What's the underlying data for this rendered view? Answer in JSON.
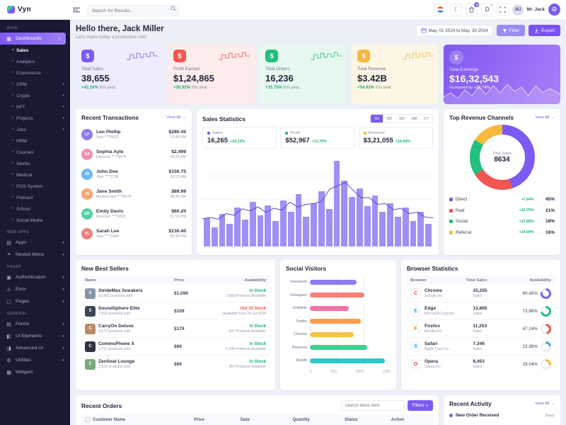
{
  "brand": {
    "name": "Vyn"
  },
  "header": {
    "search_placeholder": "Search for Results...",
    "cart_badge": "5",
    "user_name": "Mr. Jack",
    "user_initials": "MJ"
  },
  "icons": {
    "chevron_down": "▾",
    "bullet": "•",
    "caret_down": "▾",
    "arrow_right": "→",
    "moon": "☾",
    "theme": "◐",
    "gear": "⚙",
    "dollar": "$"
  },
  "sidebar": {
    "sections": [
      {
        "label": "MAIN",
        "items": [
          {
            "label": "Dashboards",
            "icon": "▦",
            "active": true,
            "children": [
              {
                "label": "Sales",
                "active": true
              },
              {
                "label": "Analytics"
              },
              {
                "label": "Ecommerce"
              },
              {
                "label": "CRM",
                "arrow": true
              },
              {
                "label": "Crypto",
                "arrow": true
              },
              {
                "label": "NFT",
                "arrow": true
              },
              {
                "label": "Projects",
                "arrow": true
              },
              {
                "label": "Jobs",
                "arrow": true
              },
              {
                "label": "HRM"
              },
              {
                "label": "Courses"
              },
              {
                "label": "Stocks"
              },
              {
                "label": "Medical"
              },
              {
                "label": "POS System"
              },
              {
                "label": "Podcast"
              },
              {
                "label": "School"
              },
              {
                "label": "Social Media"
              }
            ]
          }
        ]
      },
      {
        "label": "WEB APPS",
        "items": [
          {
            "label": "Apps",
            "icon": "▤",
            "arrow": true
          },
          {
            "label": "Nested Menu",
            "icon": "≡",
            "arrow": true
          }
        ]
      },
      {
        "label": "PAGES",
        "items": [
          {
            "label": "Authentication",
            "icon": "▣",
            "arrow": true
          },
          {
            "label": "Error",
            "icon": "⚠",
            "arrow": true
          },
          {
            "label": "Pages",
            "icon": "▢",
            "arrow": true
          }
        ]
      },
      {
        "label": "GENERAL",
        "items": [
          {
            "label": "Forms",
            "icon": "▤",
            "arrow": true
          },
          {
            "label": "UI Elements",
            "icon": "◧",
            "arrow": true
          },
          {
            "label": "Advanced UI",
            "icon": "◨",
            "arrow": true
          },
          {
            "label": "Utilities",
            "icon": "⚙",
            "arrow": true
          },
          {
            "label": "Widgets",
            "icon": "▦"
          }
        ]
      }
    ]
  },
  "welcome": {
    "title": "Hello there, Jack Miller",
    "subtitle": "Let's make today a productive one!"
  },
  "toolbar": {
    "date_range": "May, 01 2024 to May, 30 2024",
    "filter_label": "Filter",
    "export_label": "Export"
  },
  "stat_cards": [
    {
      "label": "Total Sales",
      "value": "38,655",
      "change": "+42.16%",
      "suffix": "this year",
      "accent": "#7c5bf2",
      "bg": "#efecfd"
    },
    {
      "label": "Profit Earned",
      "value": "$1,24,865",
      "change": "+26.92%",
      "suffix": "this year",
      "accent": "#f0564f",
      "bg": "#fdecec"
    },
    {
      "label": "Total Orders",
      "value": "16,236",
      "change": "+15.75%",
      "suffix": "this year",
      "accent": "#21c07e",
      "bg": "#e7f8f1"
    },
    {
      "label": "Total Revenue",
      "value": "$3.42B",
      "change": "+54.43%",
      "suffix": "this year",
      "accent": "#f6b83e",
      "bg": "#fdf6e4"
    }
  ],
  "earnings": {
    "label": "Total Earnings",
    "value": "$16,32,543",
    "note": "Increased by",
    "change": "+22.74%"
  },
  "transactions": {
    "title": "Recent Transactions",
    "view_all": "View All →",
    "items": [
      {
        "name": "Leo Phillip",
        "card": "Visa ****5532",
        "amount": "$280.45",
        "time": "12:48 PM",
        "color": "#8f7bf4"
      },
      {
        "name": "Sophia Ayle",
        "card": "Discover ****5578",
        "amount": "$2,499",
        "time": "04:24 AM",
        "color": "#f48fb1"
      },
      {
        "name": "John Doe",
        "card": "Visa ****1234",
        "amount": "$150.75",
        "time": "10:23 AM",
        "color": "#6fb6f5"
      },
      {
        "name": "Jane Smith",
        "card": "MasterCard ****5678",
        "amount": "$89.99",
        "time": "08:45 AM",
        "color": "#f5a76f"
      },
      {
        "name": "Emily Davis",
        "card": "Discover ****4321",
        "amount": "$60.20",
        "time": "01:50 PM",
        "color": "#58cfa2"
      },
      {
        "name": "Sarah Lee",
        "card": "Visa ****2468",
        "amount": "$130.40",
        "time": "05:32 PM",
        "color": "#ef7f7f"
      }
    ]
  },
  "sales_stats": {
    "title": "Sales Statistics",
    "tabs": [
      "1D",
      "1W",
      "1M",
      "6M",
      "1Y"
    ],
    "active_tab": "1D",
    "metrics": [
      {
        "label": "Sales",
        "value": "16,265",
        "change": "+24.12%",
        "color": "#7c5bf2"
      },
      {
        "label": "Profit",
        "value": "$52,967",
        "change": "+13.75%",
        "color": "#21c07e"
      },
      {
        "label": "Revenue",
        "value": "$3,21,055",
        "change": "+16.64%",
        "color": "#f6b83e"
      }
    ],
    "chart": {
      "type": "bar",
      "bar_color": "#a18ff5",
      "line_color": "#5f43d6",
      "values": [
        38,
        26,
        44,
        30,
        52,
        36,
        60,
        42,
        55,
        34,
        62,
        46,
        70,
        40,
        58,
        74,
        50,
        115,
        88,
        66,
        78,
        54,
        68,
        46,
        58,
        40,
        52,
        34,
        46,
        30
      ]
    }
  },
  "revenue_channels": {
    "title": "Top Revenue Channels",
    "view_all": "View All →",
    "center_label": "Total Sales",
    "center_value": "8634",
    "items": [
      {
        "label": "Direct",
        "change": "+7.64%",
        "share": "45%",
        "pct": 45,
        "color": "#7c5bf2"
      },
      {
        "label": "Paid",
        "change": "+12.75%",
        "share": "21%",
        "pct": 21,
        "color": "#f0564f"
      },
      {
        "label": "Social",
        "change": "+21.85%",
        "share": "18%",
        "pct": 18,
        "color": "#21c07e"
      },
      {
        "label": "Referral",
        "change": "+14.99%",
        "share": "16%",
        "pct": 16,
        "color": "#f6b83e"
      }
    ]
  },
  "best_sellers": {
    "title": "New Best Sellers",
    "headers": [
      "Name",
      "Price",
      "Availability"
    ],
    "rows": [
      {
        "name": "StrideMax Sneakers",
        "sold": "15,982 products sold",
        "price": "$1,099",
        "status": "In Stock",
        "status_type": "ok",
        "sub": "2,689 Products Available",
        "color": "#8795a8"
      },
      {
        "name": "SoundSphere Elite",
        "sold": "7,833 products sold",
        "price": "$109",
        "status": "Out Of Stock",
        "status_type": "bad",
        "sub": "Available from 20,Jul 2024",
        "color": "#3e4555"
      },
      {
        "name": "CarryOn Deluxe",
        "sold": "4,672 products sold",
        "price": "$179",
        "status": "In Stock",
        "status_type": "ok",
        "sub": "537 Products Available",
        "color": "#b98b6a"
      },
      {
        "name": "CommuPhone X",
        "sold": "2,721 products sold",
        "price": "$89",
        "status": "In Stock",
        "status_type": "ok",
        "sub": "1,245 Products Available",
        "color": "#2f3240"
      },
      {
        "name": "ZenSeat Lounge",
        "sold": "1,623 products sold",
        "price": "$89",
        "status": "In Stock",
        "status_type": "ok",
        "sub": "354 Products Available",
        "color": "#7aa97c"
      }
    ]
  },
  "social_visitors": {
    "title": "Social Visitors",
    "categories": [
      "Facebook",
      "Instagram",
      "Dribbble",
      "Twitter",
      "Chrome",
      "Pinterest",
      "Reddit"
    ],
    "values": [
      870,
      1010,
      720,
      950,
      820,
      1060,
      1390
    ],
    "colors": [
      "#8b7cf6",
      "#f97f75",
      "#f273a8",
      "#fb9d4b",
      "#f4c542",
      "#3ecf8e",
      "#2ec8c8"
    ],
    "x_ticks": [
      "0",
      "500",
      "1000",
      "1500"
    ],
    "x_max": 1500
  },
  "browser_stats": {
    "title": "Browser Statistics",
    "headers": [
      "Browser",
      "Total Sales",
      "Availability"
    ],
    "rows": [
      {
        "name": "Chrome",
        "company": "Google,Inc.",
        "sales": "15,255",
        "unit": "Sales",
        "pct_label": "80.45%",
        "pct": 80.45,
        "ring": "#7c5bf2",
        "letter_color": "#e8453c"
      },
      {
        "name": "Edge",
        "company": "Microsoft Corp,Inc.",
        "sales": "13,865",
        "unit": "Sales",
        "pct_label": "72.86%",
        "pct": 72.86,
        "ring": "#21c07e",
        "letter_color": "#2aa7d8"
      },
      {
        "name": "Firefox",
        "company": "Mozilla,Inc.",
        "sales": "11,253",
        "unit": "Sales",
        "pct_label": "47.24%",
        "pct": 47.24,
        "ring": "#f0564f",
        "letter_color": "#f57c00"
      },
      {
        "name": "Safari",
        "company": "Apple Corp,Inc.",
        "sales": "7,346",
        "unit": "Sales",
        "pct_label": "22.98%",
        "pct": 22.98,
        "ring": "#38a3f5",
        "letter_color": "#2f8df5"
      },
      {
        "name": "Opera",
        "company": "Opera,Inc.",
        "sales": "9,453",
        "unit": "Sales",
        "pct_label": "28.04%",
        "pct": 28.04,
        "ring": "#f6b83e",
        "letter_color": "#e23b49"
      }
    ]
  },
  "recent_orders": {
    "title": "Recent Orders",
    "search_placeholder": "Search items here..",
    "filters_label": "Filters",
    "headers": [
      "Customer Name",
      "Price",
      "Date",
      "Quantity",
      "Status",
      "Action"
    ]
  },
  "recent_activity": {
    "title": "Recent Activity",
    "view_all": "View All →",
    "items": [
      {
        "label": "New Order Received",
        "time": "Today"
      }
    ]
  }
}
